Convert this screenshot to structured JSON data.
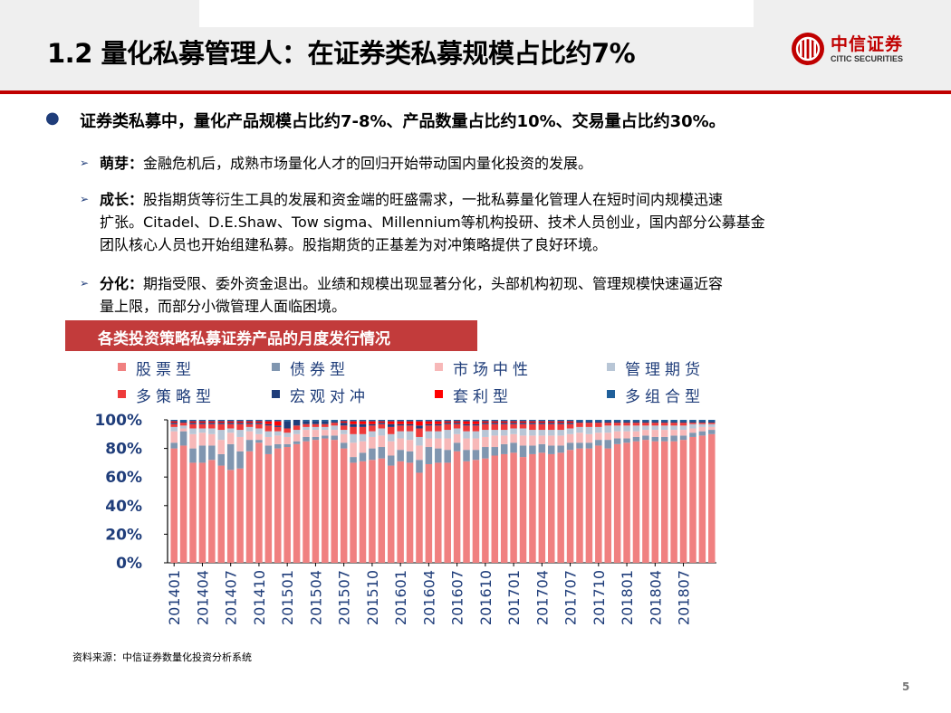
{
  "header": {
    "title": "1.2 量化私募管理人：在证券类私募规模占比约7%"
  },
  "logo": {
    "cn": "中信证券",
    "en": "CITIC SECURITIES"
  },
  "bullet": {
    "text": "证券类私募中，量化产品规模占比约7-8%、产品数量占比约10%、交易量占比约30%。"
  },
  "subs": [
    {
      "label": "萌芽：",
      "lines": [
        "金融危机后，成熟市场量化人才的回归开始带动国内量化投资的发展。"
      ]
    },
    {
      "label": "成长：",
      "lines": [
        "股指期货等衍生工具的发展和资金端的旺盛需求，一批私募量化管理人在短时间内规模迅速",
        "扩张。Citadel、D.E.Shaw、Tow sigma、Millennium等机构投研、技术人员创业，国内部分公募基金",
        "团队核心人员也开始组建私募。股指期货的正基差为对冲策略提供了良好环境。"
      ]
    },
    {
      "label": "分化：",
      "lines": [
        "期指受限、委外资金退出。业绩和规模出现显著分化，头部机构初现、管理规模快速逼近容",
        "量上限，而部分小微管理人面临困境。"
      ]
    }
  ],
  "source": "资料来源：中信证券数量化投资分析系统",
  "page_number": "5",
  "chart_data": {
    "type": "bar",
    "stacked": true,
    "title": "各类投资策略私募证券产品的月度发行情况",
    "ylim": [
      0,
      100
    ],
    "yticks": [
      "0%",
      "20%",
      "40%",
      "60%",
      "80%",
      "100%"
    ],
    "tick_labels": [
      "201401",
      "201404",
      "201407",
      "201410",
      "201501",
      "201504",
      "201507",
      "201510",
      "201601",
      "201604",
      "201607",
      "201610",
      "201701",
      "201704",
      "201707",
      "201710",
      "201801",
      "201804",
      "201807"
    ],
    "legend_position": "top",
    "series": [
      {
        "name": "股票型",
        "color": "#f08080",
        "values": [
          80,
          82,
          70,
          70,
          72,
          68,
          65,
          66,
          78,
          84,
          76,
          80,
          81,
          83,
          85,
          86,
          87,
          86,
          80,
          70,
          71,
          72,
          73,
          68,
          71,
          70,
          63,
          69,
          70,
          70,
          78,
          71,
          72,
          73,
          75,
          76,
          77,
          74,
          76,
          77,
          76,
          77,
          79,
          80,
          80,
          82,
          80,
          83,
          84,
          85,
          86,
          85,
          85,
          85,
          86,
          88,
          89,
          90
        ]
      },
      {
        "name": "债券型",
        "color": "#8096b0",
        "values": [
          4,
          10,
          10,
          12,
          10,
          8,
          18,
          12,
          8,
          2,
          6,
          3,
          2,
          2,
          3,
          2,
          2,
          3,
          4,
          4,
          6,
          8,
          8,
          7,
          8,
          8,
          9,
          12,
          10,
          9,
          6,
          8,
          7,
          8,
          6,
          7,
          7,
          8,
          6,
          6,
          6,
          5,
          5,
          4,
          4,
          4,
          6,
          4,
          3,
          3,
          3,
          3,
          3,
          4,
          3,
          3,
          3,
          3
        ]
      },
      {
        "name": "市场中性",
        "color": "#f7b8b8",
        "values": [
          8,
          2,
          10,
          9,
          8,
          10,
          8,
          10,
          6,
          4,
          6,
          6,
          5,
          5,
          5,
          5,
          4,
          4,
          6,
          10,
          8,
          8,
          8,
          10,
          8,
          8,
          10,
          6,
          7,
          8,
          6,
          8,
          8,
          7,
          8,
          6,
          6,
          7,
          7,
          6,
          7,
          7,
          6,
          7,
          6,
          5,
          5,
          5,
          5,
          4,
          4,
          5,
          5,
          4,
          4,
          3,
          3,
          2
        ]
      },
      {
        "name": "管理期货",
        "color": "#b8c6d6",
        "values": [
          3,
          2,
          4,
          3,
          4,
          7,
          3,
          5,
          3,
          4,
          4,
          3,
          3,
          3,
          2,
          2,
          2,
          3,
          3,
          6,
          5,
          4,
          5,
          5,
          5,
          6,
          6,
          5,
          5,
          6,
          4,
          5,
          5,
          5,
          4,
          4,
          4,
          5,
          4,
          4,
          4,
          4,
          4,
          4,
          5,
          4,
          5,
          4,
          4,
          4,
          3,
          3,
          3,
          3,
          3,
          3,
          2,
          2
        ]
      },
      {
        "name": "多策略型",
        "color": "#ee3a3a",
        "values": [
          2,
          2,
          3,
          3,
          3,
          4,
          3,
          4,
          2,
          3,
          4,
          3,
          3,
          3,
          2,
          2,
          2,
          2,
          3,
          5,
          5,
          4,
          3,
          5,
          4,
          4,
          6,
          4,
          4,
          4,
          3,
          4,
          4,
          4,
          4,
          4,
          3,
          3,
          4,
          4,
          4,
          4,
          3,
          3,
          3,
          3,
          2,
          2,
          2,
          2,
          2,
          2,
          2,
          2,
          2,
          1,
          1,
          1
        ]
      },
      {
        "name": "宏观对冲",
        "color": "#1f3d7a",
        "values": [
          1,
          1,
          1,
          1,
          1,
          1,
          1,
          1,
          1,
          1,
          1,
          1,
          5,
          4,
          2,
          2,
          2,
          1,
          2,
          2,
          2,
          1,
          1,
          2,
          1,
          1,
          2,
          1,
          1,
          1,
          1,
          1,
          1,
          1,
          1,
          1,
          1,
          1,
          1,
          1,
          1,
          1,
          1,
          1,
          1,
          1,
          1,
          1,
          1,
          1,
          1,
          1,
          1,
          1,
          1,
          1,
          1,
          1
        ]
      },
      {
        "name": "套利型",
        "color": "#ff0000",
        "values": [
          1,
          0,
          1,
          1,
          1,
          1,
          1,
          1,
          1,
          1,
          2,
          3,
          0,
          0,
          0,
          0,
          0,
          0,
          1,
          2,
          2,
          2,
          1,
          2,
          2,
          2,
          3,
          2,
          2,
          1,
          1,
          2,
          2,
          1,
          1,
          1,
          1,
          1,
          1,
          1,
          1,
          1,
          1,
          0,
          0,
          0,
          0,
          0,
          0,
          0,
          0,
          0,
          0,
          0,
          0,
          0,
          0,
          0
        ]
      },
      {
        "name": "多组合型",
        "color": "#1f5f9a",
        "values": [
          1,
          1,
          1,
          1,
          1,
          1,
          1,
          1,
          1,
          1,
          1,
          1,
          1,
          0,
          1,
          1,
          1,
          1,
          1,
          1,
          1,
          1,
          1,
          1,
          1,
          1,
          1,
          1,
          1,
          1,
          1,
          1,
          1,
          1,
          1,
          1,
          1,
          1,
          1,
          1,
          1,
          1,
          1,
          1,
          1,
          1,
          1,
          1,
          1,
          1,
          1,
          1,
          1,
          1,
          1,
          1,
          1,
          1
        ]
      }
    ]
  }
}
